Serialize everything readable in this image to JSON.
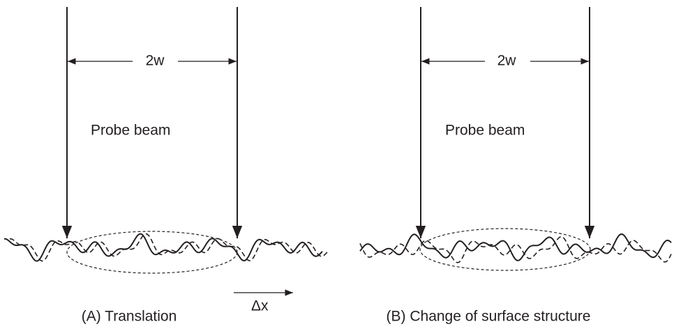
{
  "panels": [
    {
      "width_label": "2w",
      "beam_label": "Probe beam",
      "shift_label": "Δx",
      "caption": "(A) Translation"
    },
    {
      "width_label": "2w",
      "beam_label": "Probe beam",
      "caption": "(B) Change of surface structure"
    }
  ]
}
